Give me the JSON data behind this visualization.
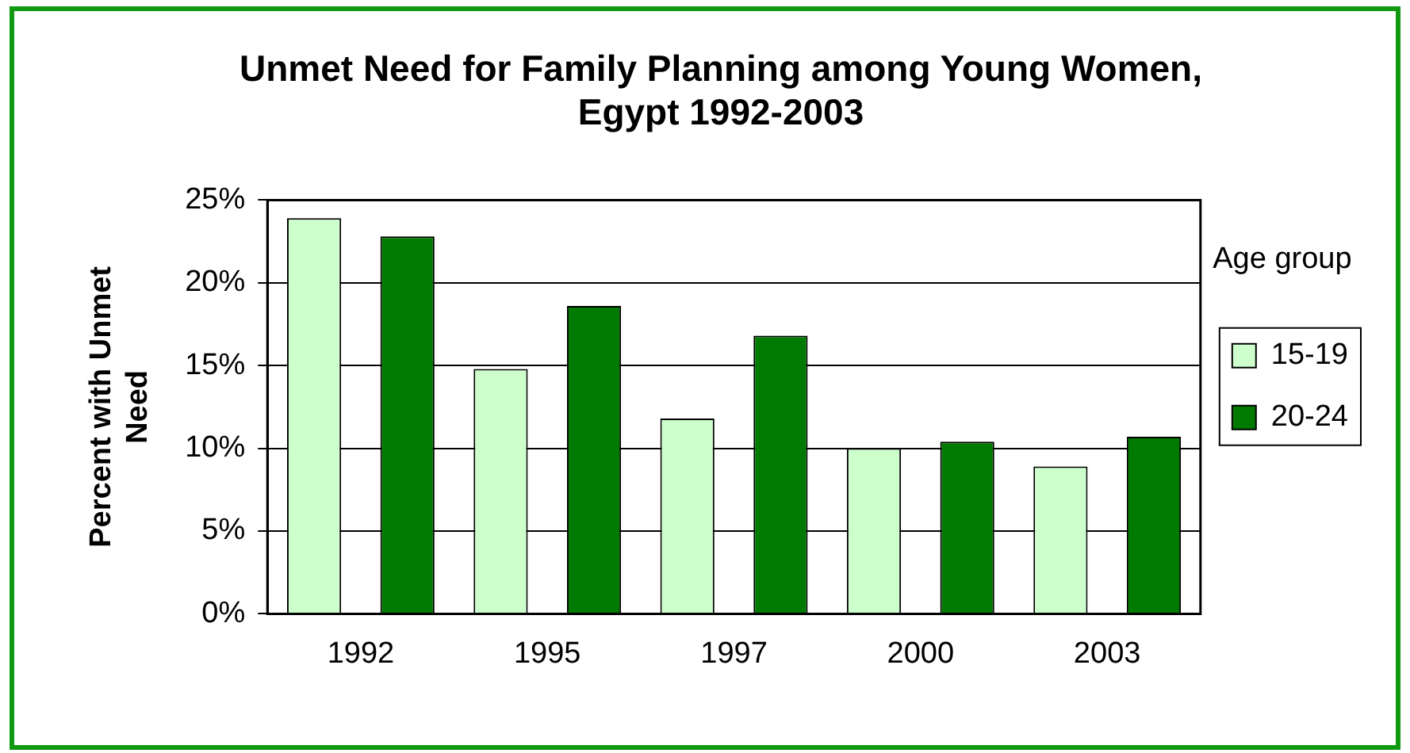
{
  "chart_data": {
    "type": "bar",
    "title": "Unmet Need for Family Planning among Young Women, Egypt 1992-2003",
    "ylabel": "Percent with Unmet Need",
    "legend_title": "Age group",
    "categories": [
      "1992",
      "1995",
      "1997",
      "2000",
      "2003"
    ],
    "series": [
      {
        "name": "15-19",
        "color": "#ccffcc",
        "values": [
          23.9,
          14.8,
          11.8,
          10.0,
          8.9
        ]
      },
      {
        "name": "20-24",
        "color": "#007a00",
        "values": [
          22.8,
          18.6,
          16.8,
          10.4,
          10.7
        ]
      }
    ],
    "ylim": [
      0,
      25
    ],
    "yticks": [
      {
        "value": 0,
        "label": "0%"
      },
      {
        "value": 5,
        "label": "5%"
      },
      {
        "value": 10,
        "label": "10%"
      },
      {
        "value": 15,
        "label": "15%"
      },
      {
        "value": 20,
        "label": "20%"
      },
      {
        "value": 25,
        "label": "25%"
      }
    ],
    "grid": "y",
    "legend": "right"
  }
}
